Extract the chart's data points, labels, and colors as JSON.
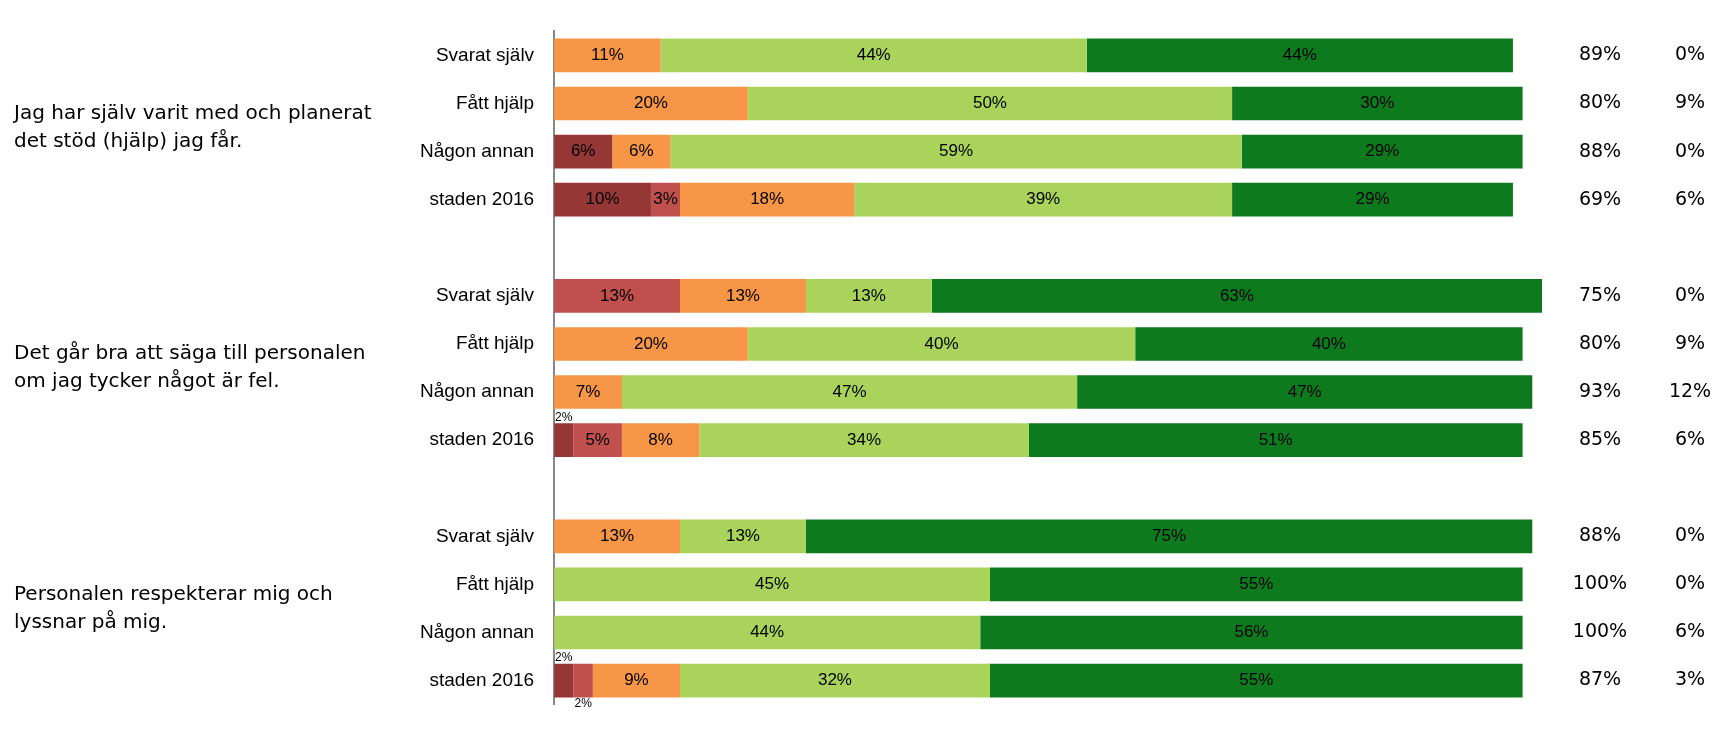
{
  "chart_data": {
    "type": "bar",
    "orientation": "horizontal",
    "stacked": true,
    "legend": false,
    "grid": false,
    "tick_labels": "y",
    "categories": [
      "Svarat själv",
      "Fått hjälp",
      "Någon annan",
      "staden 2016",
      null,
      "Svarat själv",
      "Fått hjälp",
      "Någon annan",
      "staden 2016",
      null,
      "Svarat själv",
      "Fått hjälp",
      "Någon annan",
      "staden 2016"
    ],
    "series": [
      {
        "color": "#953735",
        "values": [
          null,
          null,
          6,
          10,
          null,
          null,
          null,
          null,
          2,
          null,
          null,
          null,
          null,
          2
        ],
        "value_labels": [
          null,
          null,
          "6%",
          "10%",
          null,
          null,
          null,
          null,
          "2%",
          null,
          null,
          null,
          null,
          "2%"
        ]
      },
      {
        "color": "#c0504d",
        "values": [
          null,
          null,
          null,
          3,
          null,
          13,
          null,
          null,
          5,
          null,
          null,
          null,
          null,
          2
        ],
        "value_labels": [
          null,
          null,
          null,
          "3%",
          null,
          "13%",
          null,
          null,
          "5%",
          null,
          null,
          null,
          null,
          "2%"
        ]
      },
      {
        "color": "#f79646",
        "values": [
          11,
          20,
          6,
          18,
          null,
          13,
          20,
          7,
          8,
          null,
          13,
          null,
          null,
          9
        ],
        "value_labels": [
          "11%",
          "20%",
          "6%",
          "18%",
          null,
          "13%",
          "20%",
          "7%",
          "8%",
          null,
          "13%",
          null,
          null,
          "9%"
        ]
      },
      {
        "color": "#a9d35b",
        "values": [
          44,
          50,
          59,
          39,
          null,
          13,
          40,
          47,
          34,
          null,
          13,
          45,
          44,
          32
        ],
        "value_labels": [
          "44%",
          "50%",
          "59%",
          "39%",
          null,
          "13%",
          "40%",
          "47%",
          "34%",
          null,
          "13%",
          "45%",
          "44%",
          "32%"
        ]
      },
      {
        "color": "#0e7a1e",
        "values": [
          44,
          30,
          29,
          29,
          null,
          63,
          40,
          47,
          51,
          null,
          75,
          55,
          56,
          55
        ],
        "value_labels": [
          "44%",
          "30%",
          "29%",
          "29%",
          null,
          "63%",
          "40%",
          "47%",
          "51%",
          null,
          "75%",
          "55%",
          "56%",
          "55%"
        ]
      }
    ],
    "annotations": [
      "Jag har själv varit med och planerat det stöd (hjälp) jag får.",
      "Det går bra att säga till personalen om jag tycker något är fel.",
      "Personalen respekterar mig och lyssnar på mig.",
      "89%",
      "0%",
      "80%",
      "9%",
      "88%",
      "0%",
      "69%",
      "6%",
      "75%",
      "0%",
      "80%",
      "9%",
      "93%",
      "12%",
      "85%",
      "6%",
      "88%",
      "0%",
      "100%",
      "0%",
      "100%",
      "6%",
      "87%",
      "3%"
    ]
  }
}
